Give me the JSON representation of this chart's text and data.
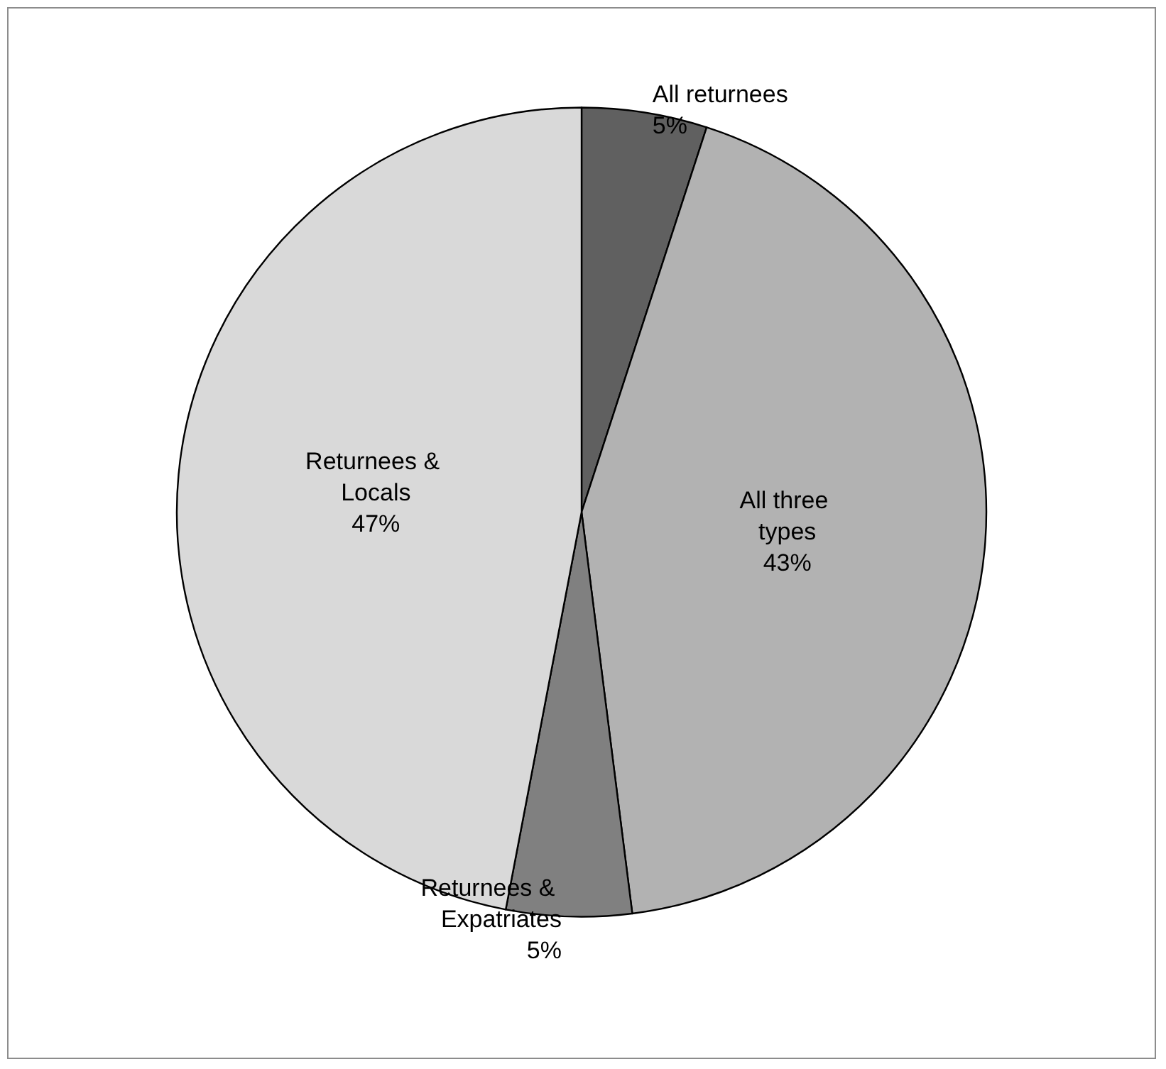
{
  "chart_data": {
    "type": "pie",
    "categories": [
      "All returnees",
      "All three types",
      "Returnees & Expatriates",
      "Returnees & Locals"
    ],
    "values": [
      5,
      43,
      5,
      47
    ],
    "colors": [
      "#606060",
      "#b2b2b2",
      "#808080",
      "#d9d9d9"
    ],
    "value_labels": [
      "5%",
      "43%",
      "5%",
      "47%"
    ],
    "legend": false
  }
}
